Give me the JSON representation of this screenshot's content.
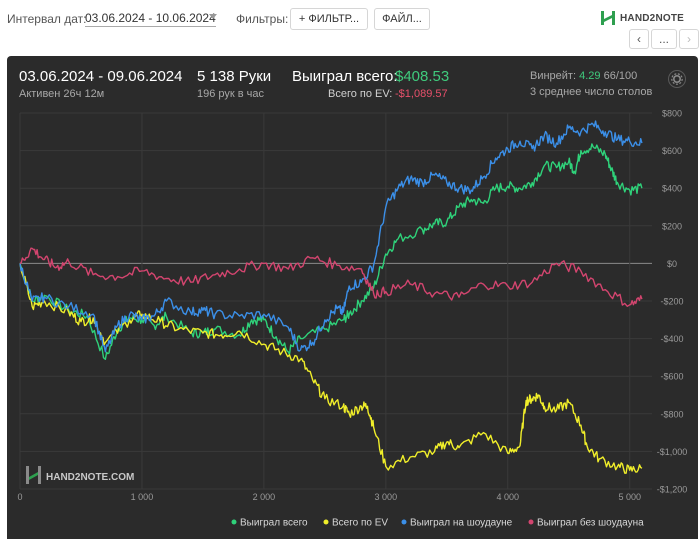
{
  "toolbar": {
    "interval_label": "Интервал дат:",
    "interval_value": "03.06.2024 - 10.06.2024",
    "filters_label": "Фильтры:",
    "filter_button": "+  ФИЛЬТР...",
    "file_button": "ФАЙЛ..."
  },
  "brand": {
    "name": "HAND2NOTE",
    "accent": "#2e9f4f"
  },
  "nav": {
    "prev": "‹",
    "more": "...",
    "next": "›"
  },
  "summary": {
    "period": "03.06.2024 - 09.06.2024",
    "active": "Активен 26ч 12м",
    "hands": "5 138 Руки",
    "hands_per_hour": "196 рук в час",
    "won_label": "Выиграл всего:",
    "won_value": "$408.53",
    "ev_label": "Всего по EV:",
    "ev_value": "-$1,089.57",
    "winrate_label": "Винрейт:",
    "winrate_value": "4.29",
    "winrate_rest": "66/100",
    "tables": "3 среднее число столов"
  },
  "chart_data": {
    "type": "line",
    "xlim": [
      0,
      5150
    ],
    "ylim": [
      -1200,
      800
    ],
    "x_ticks": [
      0,
      1000,
      2000,
      3000,
      4000,
      5000
    ],
    "x_tick_labels": [
      "0",
      "1 000",
      "2 000",
      "3 000",
      "4 000",
      "5 000"
    ],
    "y_ticks": [
      800,
      600,
      400,
      200,
      0,
      -200,
      -400,
      -600,
      -800,
      -1000,
      -1200
    ],
    "y_tick_labels": [
      "$800",
      "$600",
      "$400",
      "$200",
      "$0",
      "-$200",
      "-$400",
      "-$600",
      "-$800",
      "-$1,000",
      "-$1,200"
    ],
    "grid": true,
    "legend_position": "bottom-right",
    "watermark": "HAND2NOTE.COM",
    "series": [
      {
        "name": "Выиграл всего",
        "color": "#2fd27a",
        "x": [
          0,
          100,
          200,
          400,
          550,
          700,
          800,
          900,
          1000,
          1100,
          1200,
          1400,
          1500,
          1600,
          1800,
          1900,
          2000,
          2100,
          2200,
          2300,
          2500,
          2650,
          2700,
          2800,
          2900,
          3000,
          3100,
          3300,
          3400,
          3500,
          3600,
          3700,
          3800,
          3900,
          4000,
          4100,
          4200,
          4300,
          4400,
          4500,
          4550,
          4600,
          4700,
          4800,
          4850,
          4900,
          5000,
          5100
        ],
        "y": [
          0,
          -200,
          -170,
          -250,
          -280,
          -510,
          -350,
          -290,
          -300,
          -330,
          -280,
          -370,
          -370,
          -350,
          -380,
          -300,
          -300,
          -390,
          -470,
          -400,
          -350,
          -300,
          -270,
          -200,
          -130,
          50,
          130,
          180,
          210,
          220,
          300,
          340,
          320,
          400,
          410,
          400,
          430,
          520,
          510,
          540,
          490,
          600,
          620,
          580,
          500,
          430,
          390,
          400
        ]
      },
      {
        "name": "Всего по EV",
        "color": "#f0ee2a",
        "x": [
          0,
          100,
          200,
          400,
          500,
          600,
          700,
          900,
          1000,
          1150,
          1300,
          1500,
          1650,
          1800,
          2000,
          2150,
          2300,
          2400,
          2500,
          2650,
          2700,
          2800,
          2850,
          2900,
          3000,
          3200,
          3400,
          3500,
          3600,
          3800,
          4000,
          4100,
          4150,
          4200,
          4250,
          4300,
          4400,
          4500,
          4600,
          4650,
          4750,
          4900,
          5000,
          5100
        ],
        "y": [
          0,
          -230,
          -200,
          -260,
          -310,
          -290,
          -420,
          -300,
          -270,
          -310,
          -350,
          -370,
          -380,
          -360,
          -430,
          -470,
          -510,
          -620,
          -720,
          -760,
          -800,
          -760,
          -760,
          -870,
          -1080,
          -1030,
          -1000,
          -950,
          -980,
          -900,
          -1010,
          -970,
          -730,
          -720,
          -700,
          -760,
          -780,
          -740,
          -860,
          -970,
          -1040,
          -1080,
          -1100,
          -1090
        ]
      },
      {
        "name": "Выиграл на шоудауне",
        "color": "#3b8fe8",
        "x": [
          0,
          100,
          200,
          400,
          600,
          700,
          800,
          900,
          1000,
          1100,
          1200,
          1400,
          1500,
          1600,
          1800,
          2000,
          2200,
          2300,
          2400,
          2500,
          2600,
          2650,
          2700,
          2800,
          2900,
          3000,
          3100,
          3200,
          3300,
          3400,
          3500,
          3600,
          3700,
          3800,
          3900,
          4000,
          4100,
          4200,
          4300,
          4400,
          4500,
          4600,
          4700,
          4800,
          4900,
          5000,
          5100
        ],
        "y": [
          0,
          -200,
          -180,
          -230,
          -270,
          -470,
          -330,
          -270,
          -300,
          -280,
          -200,
          -260,
          -250,
          -270,
          -280,
          -270,
          -340,
          -460,
          -420,
          -300,
          -240,
          -260,
          -120,
          -100,
          -10,
          300,
          400,
          450,
          430,
          470,
          430,
          400,
          390,
          460,
          560,
          610,
          650,
          610,
          680,
          640,
          720,
          700,
          740,
          700,
          660,
          650,
          640
        ]
      },
      {
        "name": "Выиграл без шоудауна",
        "color": "#d3456f",
        "x": [
          0,
          100,
          200,
          300,
          400,
          600,
          800,
          1000,
          1200,
          1400,
          1600,
          1800,
          2000,
          2200,
          2400,
          2600,
          2800,
          2900,
          3000,
          3200,
          3400,
          3600,
          3800,
          4000,
          4200,
          4400,
          4600,
          4800,
          5000,
          5100
        ],
        "y": [
          0,
          80,
          20,
          -20,
          10,
          -60,
          -70,
          -40,
          -80,
          -100,
          -60,
          -30,
          0,
          -30,
          30,
          -10,
          -30,
          -160,
          -150,
          -110,
          -160,
          -180,
          -110,
          -120,
          -100,
          0,
          -40,
          -140,
          -220,
          -190
        ]
      }
    ]
  }
}
